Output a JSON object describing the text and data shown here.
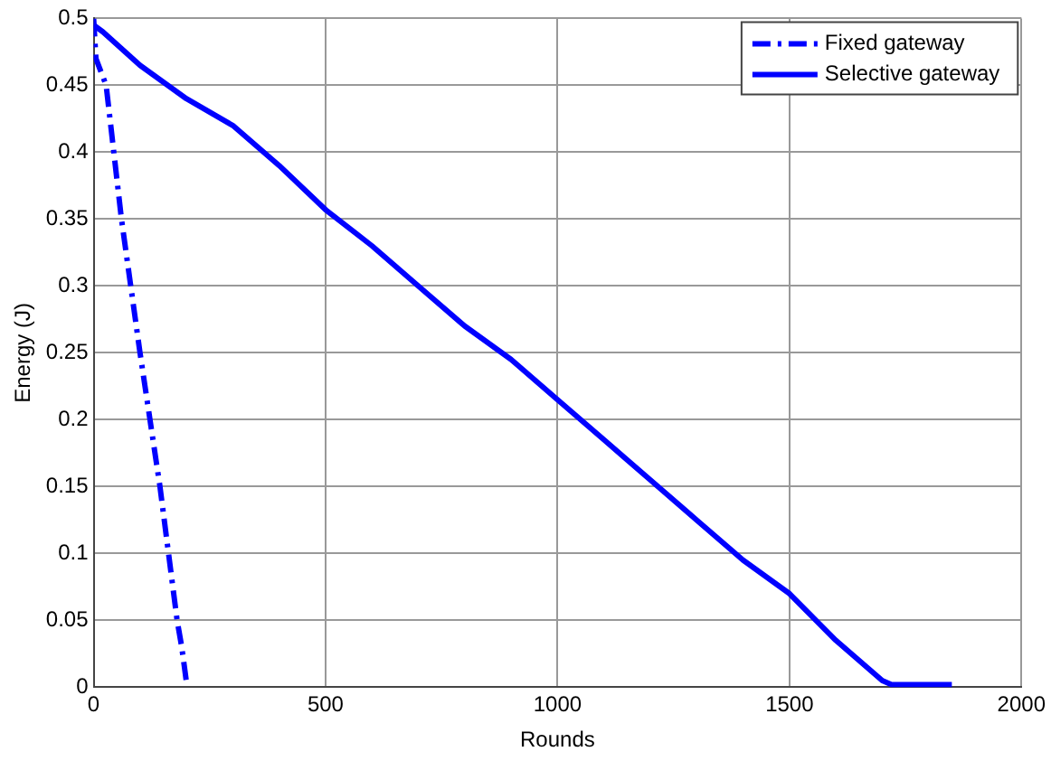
{
  "chart_data": {
    "type": "line",
    "xlabel": "Rounds",
    "ylabel": "Energy (J)",
    "xlim": [
      0,
      2000
    ],
    "xticks": [
      0,
      500,
      1000,
      1500,
      2000
    ],
    "ylim": [
      0,
      0.5
    ],
    "yticks": [
      0,
      0.05,
      0.1,
      0.15,
      0.2,
      0.25,
      0.3,
      0.35,
      0.4,
      0.45,
      0.5
    ],
    "grid": true,
    "legend": "top right",
    "marker": "none",
    "series": [
      {
        "name": "Fixed gateway",
        "color": "#0000ff",
        "line_style": "dashed",
        "x": [
          0,
          5,
          27,
          60,
          100,
          143,
          180,
          190,
          200
        ],
        "values": [
          0.5,
          0.47,
          0.45,
          0.35,
          0.25,
          0.15,
          0.05,
          0.03,
          0.004
        ]
      },
      {
        "name": "Selective gateway",
        "color": "#0000ff",
        "line_style": "solid",
        "x": [
          0,
          20,
          100,
          200,
          300,
          400,
          500,
          600,
          700,
          800,
          900,
          1000,
          1100,
          1200,
          1300,
          1400,
          1500,
          1600,
          1700,
          1720,
          1850
        ],
        "values": [
          0.495,
          0.49,
          0.465,
          0.44,
          0.42,
          0.39,
          0.357,
          0.33,
          0.3,
          0.27,
          0.245,
          0.215,
          0.185,
          0.155,
          0.125,
          0.095,
          0.07,
          0.035,
          0.005,
          0.002,
          0.002
        ]
      }
    ]
  }
}
